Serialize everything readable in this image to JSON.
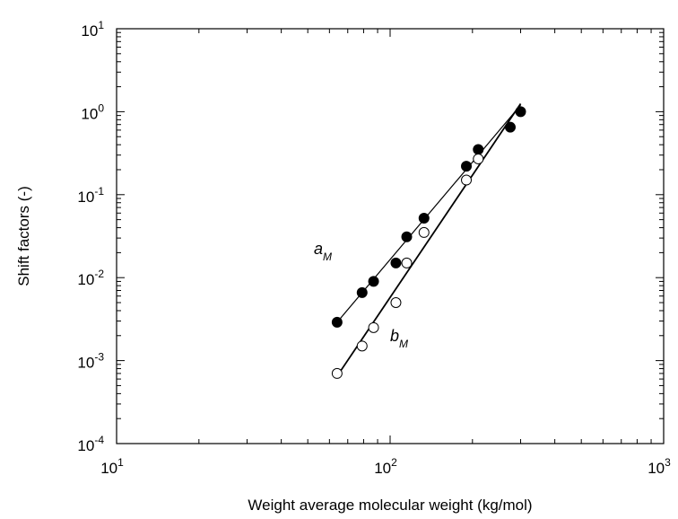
{
  "chart_data": {
    "type": "scatter",
    "xscale": "log",
    "yscale": "log",
    "xlim": [
      10,
      1000
    ],
    "ylim": [
      0.0001,
      10
    ],
    "xlabel": "Weight average molecular weight (kg/mol)",
    "ylabel": "Shift factors (-)",
    "x_ticks": [
      {
        "base": "10",
        "exp": "1",
        "value": 10
      },
      {
        "base": "10",
        "exp": "2",
        "value": 100
      },
      {
        "base": "10",
        "exp": "3",
        "value": 1000
      }
    ],
    "y_ticks": [
      {
        "base": "10",
        "exp": "-4",
        "value": 0.0001
      },
      {
        "base": "10",
        "exp": "-3",
        "value": 0.001
      },
      {
        "base": "10",
        "exp": "-2",
        "value": 0.01
      },
      {
        "base": "10",
        "exp": "-1",
        "value": 0.1
      },
      {
        "base": "10",
        "exp": "0",
        "value": 1
      },
      {
        "base": "10",
        "exp": "1",
        "value": 10
      }
    ],
    "series": [
      {
        "name": "a",
        "name_sub": "M",
        "marker": "filled-circle",
        "points": [
          {
            "x": 64,
            "y": 0.0029
          },
          {
            "x": 79,
            "y": 0.0066
          },
          {
            "x": 87,
            "y": 0.009
          },
          {
            "x": 105,
            "y": 0.015
          },
          {
            "x": 115,
            "y": 0.031
          },
          {
            "x": 133,
            "y": 0.052
          },
          {
            "x": 190,
            "y": 0.22
          },
          {
            "x": 210,
            "y": 0.35
          },
          {
            "x": 275,
            "y": 0.65
          },
          {
            "x": 300,
            "y": 1.0
          }
        ],
        "fit_line": [
          {
            "x": 64,
            "y": 0.0029
          },
          {
            "x": 300,
            "y": 1.2
          }
        ]
      },
      {
        "name": "b",
        "name_sub": "M",
        "marker": "open-circle",
        "points": [
          {
            "x": 64,
            "y": 0.0007
          },
          {
            "x": 79,
            "y": 0.0015
          },
          {
            "x": 87,
            "y": 0.0025
          },
          {
            "x": 105,
            "y": 0.005
          },
          {
            "x": 115,
            "y": 0.015
          },
          {
            "x": 133,
            "y": 0.035
          },
          {
            "x": 190,
            "y": 0.15
          },
          {
            "x": 210,
            "y": 0.27
          }
        ],
        "fit_line": [
          {
            "x": 64,
            "y": 0.00065
          },
          {
            "x": 300,
            "y": 1.25
          }
        ]
      }
    ],
    "grid": false
  }
}
